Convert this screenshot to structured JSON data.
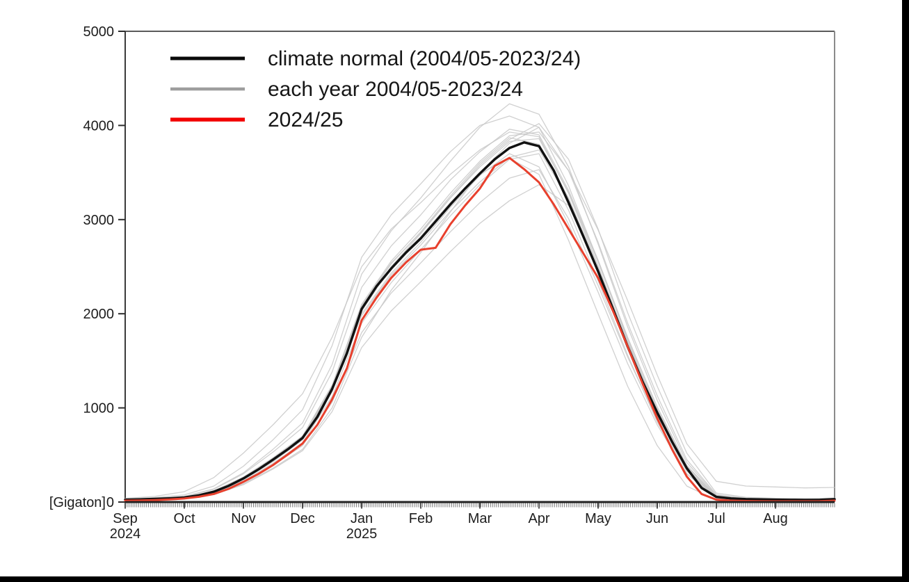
{
  "chart_data": {
    "type": "line",
    "title": "",
    "unit_label": "[Gigaton]",
    "ylabel": "Gigaton",
    "ylim": [
      0,
      5000
    ],
    "yticks": [
      0,
      1000,
      2000,
      3000,
      4000,
      5000
    ],
    "x_months": [
      {
        "label": "Sep",
        "sub": "2024"
      },
      {
        "label": "Oct",
        "sub": ""
      },
      {
        "label": "Nov",
        "sub": ""
      },
      {
        "label": "Dec",
        "sub": ""
      },
      {
        "label": "Jan",
        "sub": "2025"
      },
      {
        "label": "Feb",
        "sub": ""
      },
      {
        "label": "Mar",
        "sub": ""
      },
      {
        "label": "Apr",
        "sub": ""
      },
      {
        "label": "May",
        "sub": ""
      },
      {
        "label": "Jun",
        "sub": ""
      },
      {
        "label": "Jul",
        "sub": ""
      },
      {
        "label": "Aug",
        "sub": ""
      }
    ],
    "legend": [
      {
        "label": "climate normal (2004/05-2023/24)",
        "color": "#0a0a0a",
        "line_width": 5
      },
      {
        "label": "each year 2004/05-2023/24",
        "color": "#9e9e9e",
        "line_width": 4.5
      },
      {
        "label": "2024/25",
        "color": "#f20000",
        "line_width": 5.5
      }
    ],
    "grid": false,
    "legend_position": "top-left-inside",
    "normal": {
      "name": "climate normal (2004/05-2023/24)",
      "color": "#111111",
      "line_width": 3.5,
      "month_step": 0.25,
      "values": [
        25,
        28,
        33,
        39,
        48,
        72,
        110,
        172,
        250,
        345,
        450,
        560,
        680,
        905,
        1200,
        1580,
        2050,
        2290,
        2480,
        2650,
        2800,
        2980,
        3160,
        3330,
        3490,
        3640,
        3760,
        3820,
        3780,
        3520,
        3180,
        2820,
        2450,
        2050,
        1650,
        1280,
        950,
        640,
        360,
        150,
        55,
        38,
        30,
        27,
        25,
        23,
        22,
        23,
        30
      ]
    },
    "current": {
      "name": "2024/25",
      "color": "#e8402d",
      "line_width": 3,
      "month_step": 0.25,
      "values": [
        15,
        17,
        21,
        27,
        38,
        56,
        86,
        140,
        215,
        298,
        392,
        505,
        622,
        820,
        1090,
        1420,
        1930,
        2170,
        2380,
        2545,
        2680,
        2700,
        2950,
        3150,
        3330,
        3570,
        3655,
        3535,
        3395,
        3160,
        2900,
        2640,
        2380,
        2030,
        1650,
        1260,
        890,
        560,
        270,
        85,
        25,
        15,
        11,
        9,
        8,
        8,
        8,
        9,
        15
      ]
    },
    "years": {
      "name": "each year 2004/05-2023/24",
      "color": "#c8c8c8",
      "line_width": 1.3,
      "month_step": 0.5,
      "series": [
        [
          30,
          40,
          60,
          140,
          310,
          560,
          840,
          1460,
          2420,
          2880,
          3230,
          3620,
          3980,
          4230,
          4120,
          3560,
          2740,
          1860,
          1080,
          420,
          70,
          40,
          30,
          28,
          35
        ],
        [
          22,
          30,
          45,
          105,
          240,
          430,
          660,
          1180,
          2030,
          2500,
          2850,
          3230,
          3580,
          3850,
          4020,
          3640,
          2900,
          2010,
          1230,
          520,
          95,
          50,
          40,
          36,
          42
        ],
        [
          28,
          36,
          52,
          118,
          265,
          470,
          700,
          1230,
          2090,
          2540,
          2860,
          3230,
          3560,
          3830,
          3860,
          3290,
          2550,
          1740,
          1010,
          390,
          60,
          33,
          27,
          24,
          32
        ],
        [
          24,
          32,
          46,
          108,
          245,
          445,
          680,
          1190,
          2000,
          2430,
          2760,
          3130,
          3470,
          3700,
          3560,
          2950,
          2230,
          1470,
          820,
          300,
          45,
          25,
          21,
          19,
          26
        ],
        [
          20,
          27,
          38,
          90,
          210,
          390,
          600,
          1060,
          1800,
          2220,
          2540,
          2870,
          3180,
          3440,
          3530,
          3010,
          2300,
          1540,
          870,
          330,
          50,
          28,
          23,
          21,
          28
        ],
        [
          18,
          24,
          34,
          80,
          185,
          350,
          545,
          960,
          1640,
          2030,
          2340,
          2660,
          2960,
          3200,
          3370,
          3150,
          2480,
          1680,
          930,
          330,
          45,
          24,
          20,
          18,
          24
        ],
        [
          35,
          48,
          75,
          170,
          380,
          660,
          980,
          1660,
          2600,
          3050,
          3380,
          3720,
          4000,
          4100,
          3980,
          3360,
          2560,
          1720,
          960,
          350,
          55,
          30,
          25,
          22,
          30
        ],
        [
          26,
          34,
          50,
          115,
          260,
          460,
          700,
          1240,
          2100,
          2560,
          2900,
          3280,
          3620,
          3890,
          3930,
          3520,
          2890,
          2140,
          1350,
          620,
          220,
          170,
          160,
          150,
          155
        ],
        [
          40,
          60,
          110,
          260,
          520,
          820,
          1150,
          1750,
          2500,
          2900,
          3180,
          3480,
          3740,
          3930,
          3880,
          3280,
          2510,
          1690,
          950,
          340,
          55,
          30,
          24,
          22,
          28
        ],
        [
          20,
          26,
          36,
          85,
          195,
          360,
          560,
          1000,
          1750,
          2250,
          2650,
          3080,
          3500,
          3810,
          3980,
          3520,
          2760,
          1900,
          1130,
          450,
          80,
          40,
          32,
          28,
          34
        ],
        [
          25,
          33,
          48,
          112,
          255,
          455,
          690,
          1210,
          2060,
          2500,
          2820,
          3180,
          3490,
          3650,
          3480,
          2780,
          2000,
          1230,
          600,
          170,
          20,
          10,
          8,
          7,
          10
        ],
        [
          27,
          35,
          50,
          115,
          255,
          460,
          690,
          1220,
          2080,
          2530,
          2870,
          3250,
          3600,
          3870,
          3800,
          3230,
          2490,
          1700,
          980,
          370,
          58,
          32,
          26,
          23,
          30
        ],
        [
          22,
          29,
          42,
          98,
          225,
          410,
          630,
          1120,
          1900,
          2330,
          2680,
          3040,
          3370,
          3640,
          3700,
          3100,
          2350,
          1560,
          850,
          300,
          42,
          22,
          18,
          16,
          22
        ],
        [
          30,
          40,
          58,
          135,
          300,
          530,
          790,
          1380,
          2280,
          2720,
          3050,
          3420,
          3720,
          3960,
          3900,
          3310,
          2570,
          1750,
          1000,
          380,
          65,
          35,
          28,
          25,
          32
        ],
        [
          24,
          31,
          45,
          105,
          240,
          430,
          660,
          1170,
          1980,
          2410,
          2730,
          3090,
          3400,
          3660,
          3740,
          3220,
          2460,
          1650,
          920,
          340,
          52,
          28,
          22,
          20,
          26
        ]
      ]
    }
  }
}
